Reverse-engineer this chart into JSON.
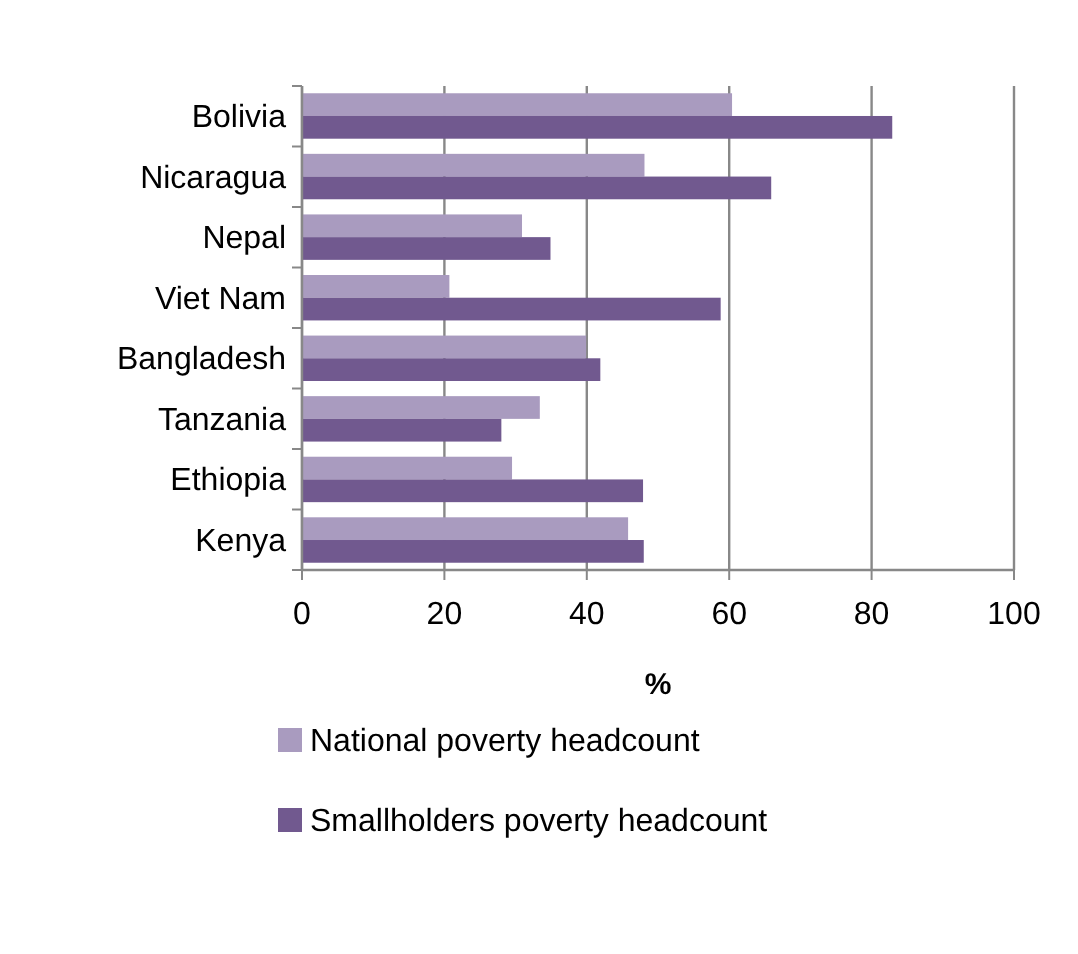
{
  "chart_data": {
    "type": "bar",
    "orientation": "horizontal",
    "categories": [
      "Bolivia",
      "Nicaragua",
      "Nepal",
      "Viet Nam",
      "Bangladesh",
      "Tanzania",
      "Ethiopia",
      "Kenya"
    ],
    "series": [
      {
        "name": "National poverty headcount",
        "color": "#a99bbf",
        "values": [
          60.4,
          48.1,
          30.9,
          20.7,
          39.9,
          33.4,
          29.5,
          45.8
        ]
      },
      {
        "name": "Smallholders poverty headcount",
        "color": "#71598f",
        "values": [
          82.9,
          65.9,
          34.9,
          58.8,
          41.9,
          28,
          47.9,
          48
        ]
      }
    ],
    "xlabel": "%",
    "xlim": [
      0,
      100
    ],
    "xticks": [
      0,
      20,
      40,
      60,
      80,
      100
    ],
    "grid": "x",
    "legend": "bottom"
  }
}
